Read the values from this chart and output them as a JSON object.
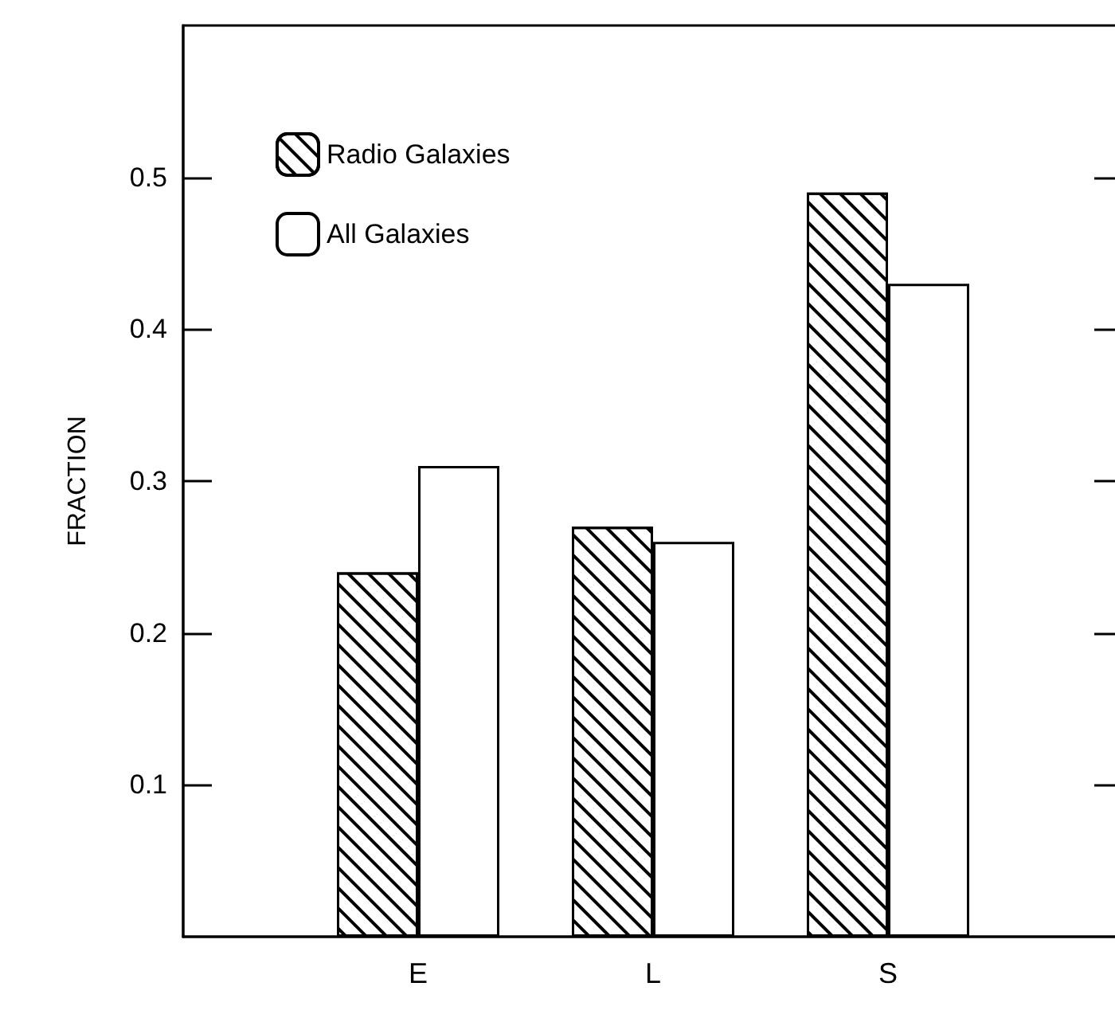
{
  "chart_data": {
    "type": "bar",
    "ylabel": "FRACTION",
    "categories": [
      "E",
      "L",
      "S"
    ],
    "series": [
      {
        "name": "Radio Galaxies",
        "color": "#000000",
        "values": [
          0.24,
          0.27,
          0.49
        ]
      },
      {
        "name": "All Galaxies",
        "color": "#ffffff",
        "values": [
          0.31,
          0.26,
          0.43
        ]
      }
    ],
    "ylim": [
      0,
      0.6
    ],
    "yticks": [
      0.1,
      0.2,
      0.3,
      0.4,
      0.5
    ],
    "grid": false,
    "legend": "top left"
  }
}
